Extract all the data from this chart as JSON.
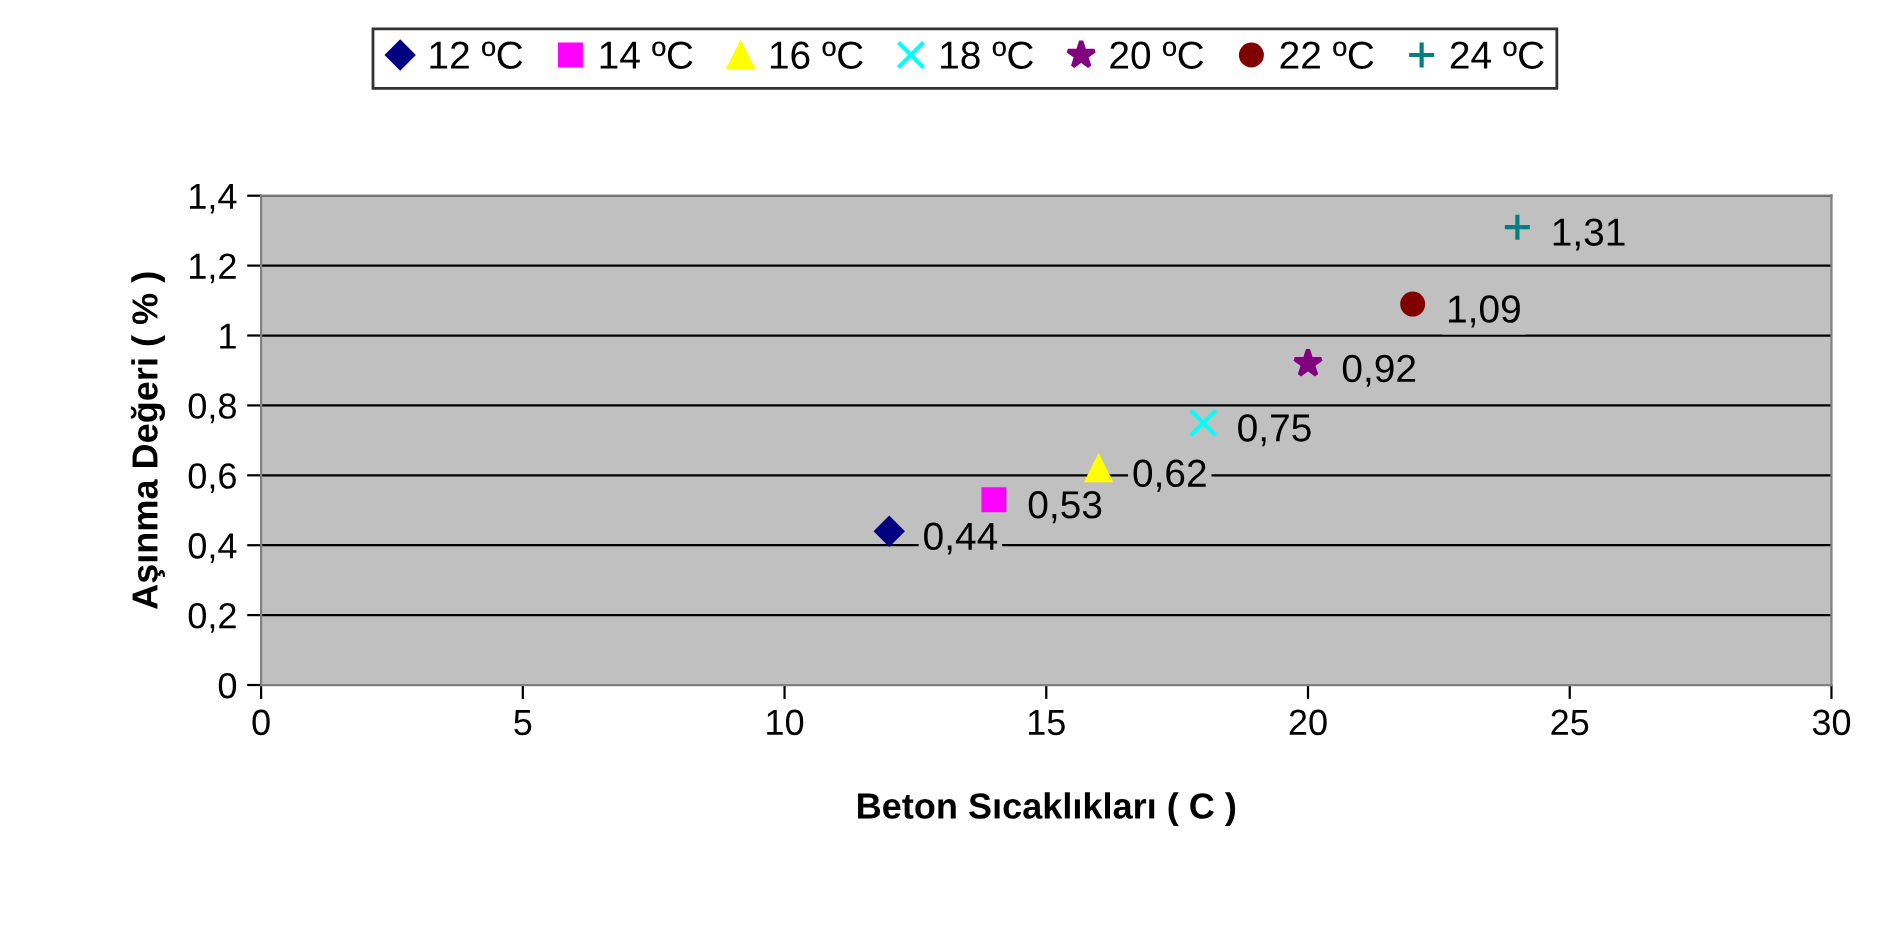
{
  "chart_data": {
    "type": "scatter",
    "xlabel": "Beton Sıcaklıkları ( C )",
    "ylabel": "Aşınma Değeri ( % )",
    "series": [
      {
        "name": "12 ºC",
        "color": "#000080",
        "marker": "diamond",
        "x": [
          12
        ],
        "values": [
          0.44
        ],
        "value_labels": [
          "0,44"
        ]
      },
      {
        "name": "14 ºC",
        "color": "#ff00ff",
        "marker": "square",
        "x": [
          14
        ],
        "values": [
          0.53
        ],
        "value_labels": [
          "0,53"
        ]
      },
      {
        "name": "16 ºC",
        "color": "#ffff00",
        "marker": "triangle",
        "x": [
          16
        ],
        "values": [
          0.62
        ],
        "value_labels": [
          "0,62"
        ]
      },
      {
        "name": "18 ºC",
        "color": "#00ffff",
        "marker": "cross",
        "x": [
          18
        ],
        "values": [
          0.75
        ],
        "value_labels": [
          "0,75"
        ]
      },
      {
        "name": "20 ºC",
        "color": "#800080",
        "marker": "star",
        "x": [
          20
        ],
        "values": [
          0.92
        ],
        "value_labels": [
          "0,92"
        ]
      },
      {
        "name": "22 ºC",
        "color": "#800000",
        "marker": "circle",
        "x": [
          22
        ],
        "values": [
          1.09
        ],
        "value_labels": [
          "1,09"
        ]
      },
      {
        "name": "24 ºC",
        "color": "#008080",
        "marker": "plus",
        "x": [
          24
        ],
        "values": [
          1.31
        ],
        "value_labels": [
          "1,31"
        ]
      }
    ],
    "xlim": [
      0,
      30
    ],
    "xticks": [
      0,
      5,
      10,
      15,
      20,
      25,
      30
    ],
    "ylim": [
      0,
      1.4
    ],
    "yticks": [
      0,
      {
        "value": 0.2,
        "label": "0,2"
      },
      {
        "value": 0.4,
        "label": "0,4"
      },
      {
        "value": 0.6,
        "label": "0,6"
      },
      {
        "value": 0.8,
        "label": "0,8"
      },
      1,
      {
        "value": 1.2,
        "label": "1,2"
      },
      {
        "value": 1.4,
        "label": "1,4"
      }
    ],
    "grid": "y",
    "legend": "top"
  }
}
